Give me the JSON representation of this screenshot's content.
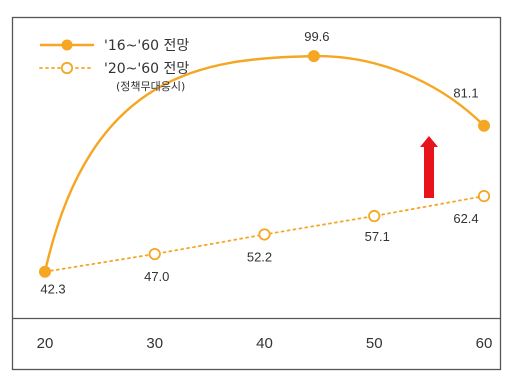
{
  "chart_data": {
    "type": "line",
    "x": [
      20,
      30,
      40,
      50,
      60
    ],
    "xlim": [
      20,
      60
    ],
    "ylim": [
      30,
      110
    ],
    "grid": false,
    "legend_position": "top-left",
    "colors": {
      "series": "#f5a623",
      "arrow": "#e8141b",
      "frame": "#555555"
    },
    "series": [
      {
        "name": "'16~'60 전망",
        "marker": "filled-circle",
        "line_style": "solid",
        "points": [
          {
            "x": 20,
            "y": 42.3,
            "label": "42.3"
          },
          {
            "x": 44.5,
            "y": 99.6,
            "label": "99.6"
          },
          {
            "x": 60,
            "y": 81.1,
            "label": "81.1"
          }
        ]
      },
      {
        "name": "'20~'60 전망",
        "name_sub": "(정책무대응시)",
        "marker": "open-circle",
        "line_style": "dotted",
        "points": [
          {
            "x": 20,
            "y": 42.3,
            "label": ""
          },
          {
            "x": 30,
            "y": 47.0,
            "label": "47.0"
          },
          {
            "x": 40,
            "y": 52.2,
            "label": "52.2"
          },
          {
            "x": 50,
            "y": 57.1,
            "label": "57.1"
          },
          {
            "x": 60,
            "y": 62.4,
            "label": "62.4"
          }
        ]
      }
    ],
    "x_tick_labels": [
      "20",
      "30",
      "40",
      "50",
      "60"
    ],
    "annotation": "upward-arrow"
  }
}
